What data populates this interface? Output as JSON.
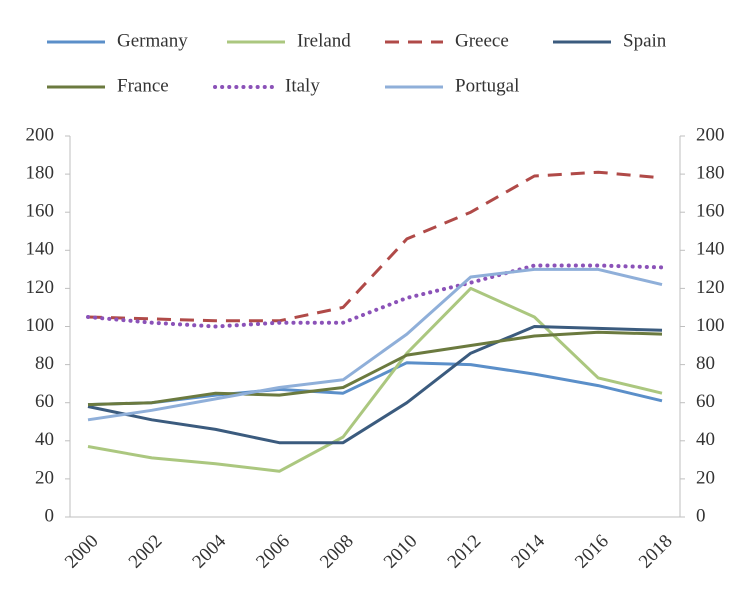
{
  "chart_data": {
    "type": "line",
    "categories": [
      "2000",
      "2002",
      "2004",
      "2006",
      "2008",
      "2010",
      "2012",
      "2014",
      "2016",
      "2018"
    ],
    "series": [
      {
        "name": "Germany",
        "color": "#5b8fc9",
        "style": "solid",
        "values": [
          59,
          60,
          64,
          67,
          65,
          81,
          80,
          75,
          69,
          61
        ]
      },
      {
        "name": "Ireland",
        "color": "#abc77f",
        "style": "solid",
        "values": [
          37,
          31,
          28,
          24,
          42,
          86,
          120,
          105,
          73,
          65
        ]
      },
      {
        "name": "Greece",
        "color": "#b04a48",
        "style": "dashed",
        "values": [
          105,
          104,
          103,
          103,
          110,
          146,
          160,
          179,
          181,
          178
        ]
      },
      {
        "name": "Spain",
        "color": "#3b5b7e",
        "style": "solid",
        "values": [
          58,
          51,
          46,
          39,
          39,
          60,
          86,
          100,
          99,
          98
        ]
      },
      {
        "name": "France",
        "color": "#6b7a3f",
        "style": "solid",
        "values": [
          59,
          60,
          65,
          64,
          68,
          85,
          90,
          95,
          97,
          96
        ]
      },
      {
        "name": "Italy",
        "color": "#8b52b8",
        "style": "dotted",
        "values": [
          105,
          102,
          100,
          102,
          102,
          115,
          123,
          132,
          132,
          131
        ]
      },
      {
        "name": "Portugal",
        "color": "#8fafd9",
        "style": "solid",
        "values": [
          51,
          56,
          62,
          68,
          72,
          96,
          126,
          130,
          130,
          122
        ]
      }
    ],
    "ylim": [
      0,
      200
    ],
    "yticks": [
      0,
      20,
      40,
      60,
      80,
      100,
      120,
      140,
      160,
      180,
      200
    ],
    "y2lim": [
      0,
      200
    ],
    "y2ticks": [
      0,
      20,
      40,
      60,
      80,
      100,
      120,
      140,
      160,
      180,
      200
    ],
    "legend": "top",
    "grid": false
  }
}
